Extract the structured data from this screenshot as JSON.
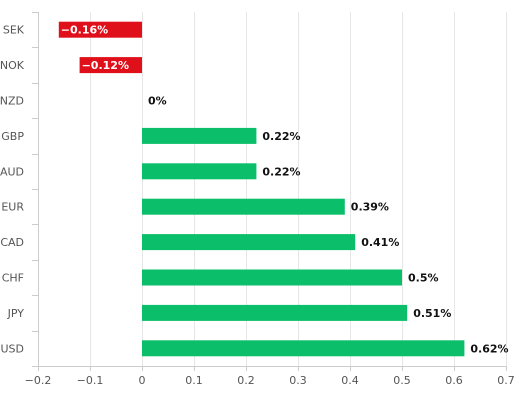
{
  "chart_data": {
    "type": "bar",
    "orientation": "horizontal",
    "categories": [
      "SEK",
      "NOK",
      "NZD",
      "GBP",
      "AUD",
      "EUR",
      "CAD",
      "CHF",
      "JPY",
      "USD"
    ],
    "values": [
      -0.16,
      -0.12,
      0,
      0.22,
      0.22,
      0.39,
      0.41,
      0.5,
      0.51,
      0.62
    ],
    "value_labels": [
      "−0.16%",
      "−0.12%",
      "0%",
      "0.22%",
      "0.22%",
      "0.39%",
      "0.41%",
      "0.5%",
      "0.51%",
      "0.62%"
    ],
    "xlim": [
      -0.2,
      0.7
    ],
    "x_ticks": [
      -0.2,
      -0.1,
      0,
      0.1,
      0.2,
      0.3,
      0.4,
      0.5,
      0.6,
      0.7
    ],
    "x_tick_labels": [
      "−0.2",
      "−0.1",
      "0",
      "0.1",
      "0.2",
      "0.3",
      "0.4",
      "0.5",
      "0.6",
      "0.7"
    ],
    "title": "",
    "xlabel": "",
    "ylabel": "",
    "grid": "vertical",
    "legend": "none",
    "colors": {
      "positive": "#0bbf6a",
      "negative": "#e0101b",
      "grid": "#e6e6e6",
      "axis": "#cccccc"
    }
  }
}
